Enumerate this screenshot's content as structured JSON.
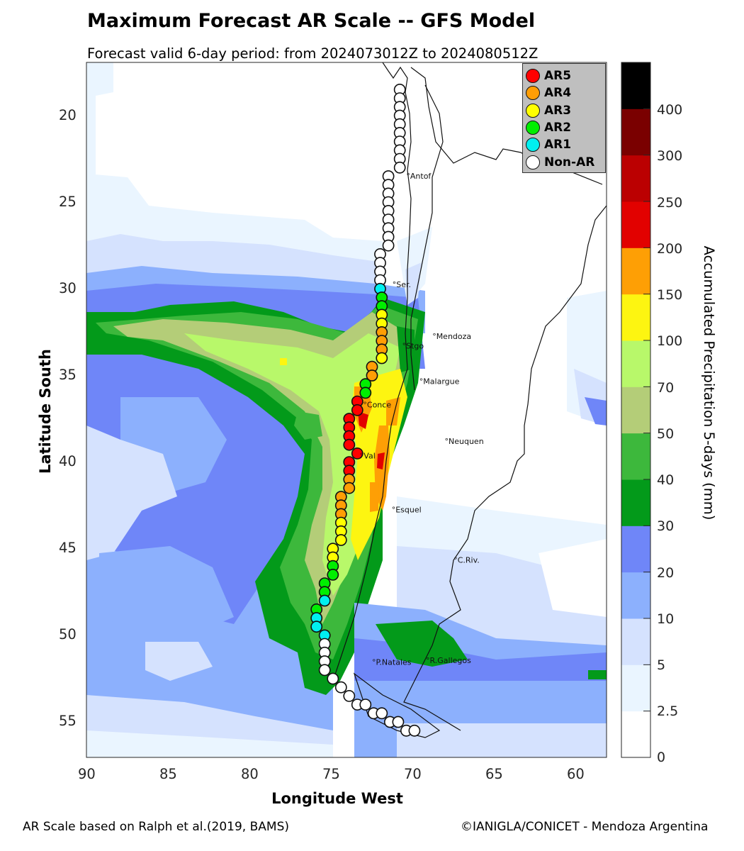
{
  "title": "Maximum Forecast AR Scale -- GFS Model",
  "subtitle": "Forecast valid 6-day period: from 2024073012Z to 2024080512Z",
  "axes": {
    "xlabel": "Longitude West",
    "ylabel": "Latitude South",
    "xticks": [
      "90",
      "85",
      "80",
      "75",
      "70",
      "65",
      "60"
    ],
    "yticks": [
      "20",
      "25",
      "30",
      "35",
      "40",
      "45",
      "50",
      "55"
    ]
  },
  "colorbar": {
    "label": "Accumulated Precipitation 5-days (mm)",
    "ticks": [
      "0",
      "2.5",
      "5",
      "10",
      "20",
      "30",
      "40",
      "50",
      "70",
      "100",
      "150",
      "200",
      "250",
      "300",
      "400"
    ],
    "colors": [
      "#ffffff",
      "#eaf5ff",
      "#d5e2fe",
      "#8cb0fd",
      "#6f86f8",
      "#039a1a",
      "#3db83c",
      "#b4cd78",
      "#b8f86a",
      "#fdf511",
      "#fe9f05",
      "#e20100",
      "#bb0001",
      "#7a0000",
      "#000000"
    ]
  },
  "legend": {
    "items": [
      {
        "label": "AR5",
        "color": "#ff0000"
      },
      {
        "label": "AR4",
        "color": "#ff9e05"
      },
      {
        "label": "AR3",
        "color": "#ffff00"
      },
      {
        "label": "AR2",
        "color": "#00ee00"
      },
      {
        "label": "AR1",
        "color": "#00f0f0"
      },
      {
        "label": "Non-AR",
        "color": "#ffffff"
      }
    ]
  },
  "cities": [
    {
      "name": "Antof",
      "lon": 70.4,
      "lat": 23.65
    },
    {
      "name": "Ser.",
      "lon": 71.25,
      "lat": 29.9
    },
    {
      "name": "Mendoza",
      "lon": 68.8,
      "lat": 32.9
    },
    {
      "name": "Stgo",
      "lon": 70.65,
      "lat": 33.45
    },
    {
      "name": "Malargue",
      "lon": 69.6,
      "lat": 35.5
    },
    {
      "name": "Conce",
      "lon": 73.05,
      "lat": 36.85
    },
    {
      "name": "Neuquen",
      "lon": 68.05,
      "lat": 38.95
    },
    {
      "name": "Val",
      "lon": 73.25,
      "lat": 39.8
    },
    {
      "name": "Esquel",
      "lon": 71.3,
      "lat": 42.9
    },
    {
      "name": "C.Riv.",
      "lon": 67.5,
      "lat": 45.8
    },
    {
      "name": "P.Natales",
      "lon": 72.5,
      "lat": 51.7
    },
    {
      "name": "R.Gallegos",
      "lon": 69.2,
      "lat": 51.6
    }
  ],
  "footer": {
    "left": "AR Scale based on Ralph et al.(2019, BAMS)",
    "right": "©IANIGLA/CONICET - Mendoza Argentina"
  },
  "chart_data": {
    "type": "scatter",
    "title": "Maximum Forecast AR Scale -- GFS Model",
    "subtitle": "Forecast valid 6-day period: from 2024073012Z to 2024080512Z",
    "xlabel": "Longitude West",
    "ylabel": "Latitude South",
    "xlim": [
      90,
      58
    ],
    "ylim": [
      57,
      17
    ],
    "grid": false,
    "legend_position": "upper right",
    "background_field": "Accumulated Precipitation 5-days (mm), filled contours",
    "categories": [
      "Non-AR",
      "AR1",
      "AR2",
      "AR3",
      "AR4",
      "AR5"
    ],
    "points": [
      {
        "lon": 70.8,
        "lat": 18.5,
        "ar": "Non-AR"
      },
      {
        "lon": 70.8,
        "lat": 19.0,
        "ar": "Non-AR"
      },
      {
        "lon": 70.8,
        "lat": 19.5,
        "ar": "Non-AR"
      },
      {
        "lon": 70.8,
        "lat": 20.0,
        "ar": "Non-AR"
      },
      {
        "lon": 70.8,
        "lat": 20.5,
        "ar": "Non-AR"
      },
      {
        "lon": 70.8,
        "lat": 21.0,
        "ar": "Non-AR"
      },
      {
        "lon": 70.8,
        "lat": 21.5,
        "ar": "Non-AR"
      },
      {
        "lon": 70.8,
        "lat": 22.0,
        "ar": "Non-AR"
      },
      {
        "lon": 70.8,
        "lat": 22.5,
        "ar": "Non-AR"
      },
      {
        "lon": 70.8,
        "lat": 23.0,
        "ar": "Non-AR"
      },
      {
        "lon": 71.5,
        "lat": 23.5,
        "ar": "Non-AR"
      },
      {
        "lon": 71.5,
        "lat": 24.0,
        "ar": "Non-AR"
      },
      {
        "lon": 71.5,
        "lat": 24.5,
        "ar": "Non-AR"
      },
      {
        "lon": 71.5,
        "lat": 25.0,
        "ar": "Non-AR"
      },
      {
        "lon": 71.5,
        "lat": 25.5,
        "ar": "Non-AR"
      },
      {
        "lon": 71.5,
        "lat": 26.0,
        "ar": "Non-AR"
      },
      {
        "lon": 71.5,
        "lat": 26.5,
        "ar": "Non-AR"
      },
      {
        "lon": 71.5,
        "lat": 27.0,
        "ar": "Non-AR"
      },
      {
        "lon": 71.5,
        "lat": 27.5,
        "ar": "Non-AR"
      },
      {
        "lon": 72.0,
        "lat": 28.0,
        "ar": "Non-AR"
      },
      {
        "lon": 72.0,
        "lat": 28.5,
        "ar": "Non-AR"
      },
      {
        "lon": 72.0,
        "lat": 29.0,
        "ar": "Non-AR"
      },
      {
        "lon": 72.0,
        "lat": 29.5,
        "ar": "Non-AR"
      },
      {
        "lon": 72.0,
        "lat": 30.0,
        "ar": "AR1"
      },
      {
        "lon": 71.9,
        "lat": 30.5,
        "ar": "AR2"
      },
      {
        "lon": 71.9,
        "lat": 31.0,
        "ar": "AR2"
      },
      {
        "lon": 71.9,
        "lat": 31.5,
        "ar": "AR3"
      },
      {
        "lon": 71.9,
        "lat": 32.0,
        "ar": "AR3"
      },
      {
        "lon": 71.9,
        "lat": 32.5,
        "ar": "AR4"
      },
      {
        "lon": 71.9,
        "lat": 33.0,
        "ar": "AR4"
      },
      {
        "lon": 71.9,
        "lat": 33.5,
        "ar": "AR4"
      },
      {
        "lon": 71.9,
        "lat": 34.0,
        "ar": "AR3"
      },
      {
        "lon": 72.5,
        "lat": 34.5,
        "ar": "AR4"
      },
      {
        "lon": 72.5,
        "lat": 35.0,
        "ar": "AR4"
      },
      {
        "lon": 72.9,
        "lat": 35.5,
        "ar": "AR2"
      },
      {
        "lon": 72.9,
        "lat": 36.0,
        "ar": "AR2"
      },
      {
        "lon": 73.4,
        "lat": 36.5,
        "ar": "AR5"
      },
      {
        "lon": 73.4,
        "lat": 37.0,
        "ar": "AR5"
      },
      {
        "lon": 73.9,
        "lat": 37.5,
        "ar": "AR5"
      },
      {
        "lon": 73.9,
        "lat": 38.0,
        "ar": "AR5"
      },
      {
        "lon": 73.9,
        "lat": 38.5,
        "ar": "AR5"
      },
      {
        "lon": 73.9,
        "lat": 39.0,
        "ar": "AR5"
      },
      {
        "lon": 73.4,
        "lat": 39.5,
        "ar": "AR5"
      },
      {
        "lon": 73.9,
        "lat": 40.0,
        "ar": "AR5"
      },
      {
        "lon": 73.9,
        "lat": 40.5,
        "ar": "AR5"
      },
      {
        "lon": 73.9,
        "lat": 41.0,
        "ar": "AR4"
      },
      {
        "lon": 73.9,
        "lat": 41.5,
        "ar": "AR4"
      },
      {
        "lon": 74.4,
        "lat": 42.0,
        "ar": "AR4"
      },
      {
        "lon": 74.4,
        "lat": 42.5,
        "ar": "AR4"
      },
      {
        "lon": 74.4,
        "lat": 43.0,
        "ar": "AR4"
      },
      {
        "lon": 74.4,
        "lat": 43.5,
        "ar": "AR3"
      },
      {
        "lon": 74.4,
        "lat": 44.0,
        "ar": "AR3"
      },
      {
        "lon": 74.4,
        "lat": 44.5,
        "ar": "AR3"
      },
      {
        "lon": 74.9,
        "lat": 45.0,
        "ar": "AR3"
      },
      {
        "lon": 74.9,
        "lat": 45.5,
        "ar": "AR3"
      },
      {
        "lon": 74.9,
        "lat": 46.0,
        "ar": "AR2"
      },
      {
        "lon": 74.9,
        "lat": 46.5,
        "ar": "AR2"
      },
      {
        "lon": 75.4,
        "lat": 47.0,
        "ar": "AR2"
      },
      {
        "lon": 75.4,
        "lat": 47.5,
        "ar": "AR2"
      },
      {
        "lon": 75.4,
        "lat": 48.0,
        "ar": "AR1"
      },
      {
        "lon": 75.9,
        "lat": 48.5,
        "ar": "AR2"
      },
      {
        "lon": 75.9,
        "lat": 49.0,
        "ar": "AR1"
      },
      {
        "lon": 75.9,
        "lat": 49.5,
        "ar": "AR1"
      },
      {
        "lon": 75.4,
        "lat": 50.0,
        "ar": "AR1"
      },
      {
        "lon": 75.4,
        "lat": 50.5,
        "ar": "Non-AR"
      },
      {
        "lon": 75.4,
        "lat": 51.0,
        "ar": "Non-AR"
      },
      {
        "lon": 75.4,
        "lat": 51.5,
        "ar": "Non-AR"
      },
      {
        "lon": 75.4,
        "lat": 52.0,
        "ar": "Non-AR"
      },
      {
        "lon": 74.9,
        "lat": 52.5,
        "ar": "Non-AR"
      },
      {
        "lon": 74.4,
        "lat": 53.0,
        "ar": "Non-AR"
      },
      {
        "lon": 73.9,
        "lat": 53.5,
        "ar": "Non-AR"
      },
      {
        "lon": 73.4,
        "lat": 54.0,
        "ar": "Non-AR"
      },
      {
        "lon": 72.9,
        "lat": 54.0,
        "ar": "Non-AR"
      },
      {
        "lon": 72.4,
        "lat": 54.5,
        "ar": "Non-AR"
      },
      {
        "lon": 71.9,
        "lat": 54.5,
        "ar": "Non-AR"
      },
      {
        "lon": 71.4,
        "lat": 55.0,
        "ar": "Non-AR"
      },
      {
        "lon": 70.9,
        "lat": 55.0,
        "ar": "Non-AR"
      },
      {
        "lon": 70.4,
        "lat": 55.5,
        "ar": "Non-AR"
      },
      {
        "lon": 69.9,
        "lat": 55.5,
        "ar": "Non-AR"
      }
    ],
    "colorbar": {
      "label": "Accumulated Precipitation 5-days (mm)",
      "levels": [
        0,
        2.5,
        5,
        10,
        20,
        30,
        40,
        50,
        70,
        100,
        150,
        200,
        250,
        300,
        400
      ]
    }
  }
}
